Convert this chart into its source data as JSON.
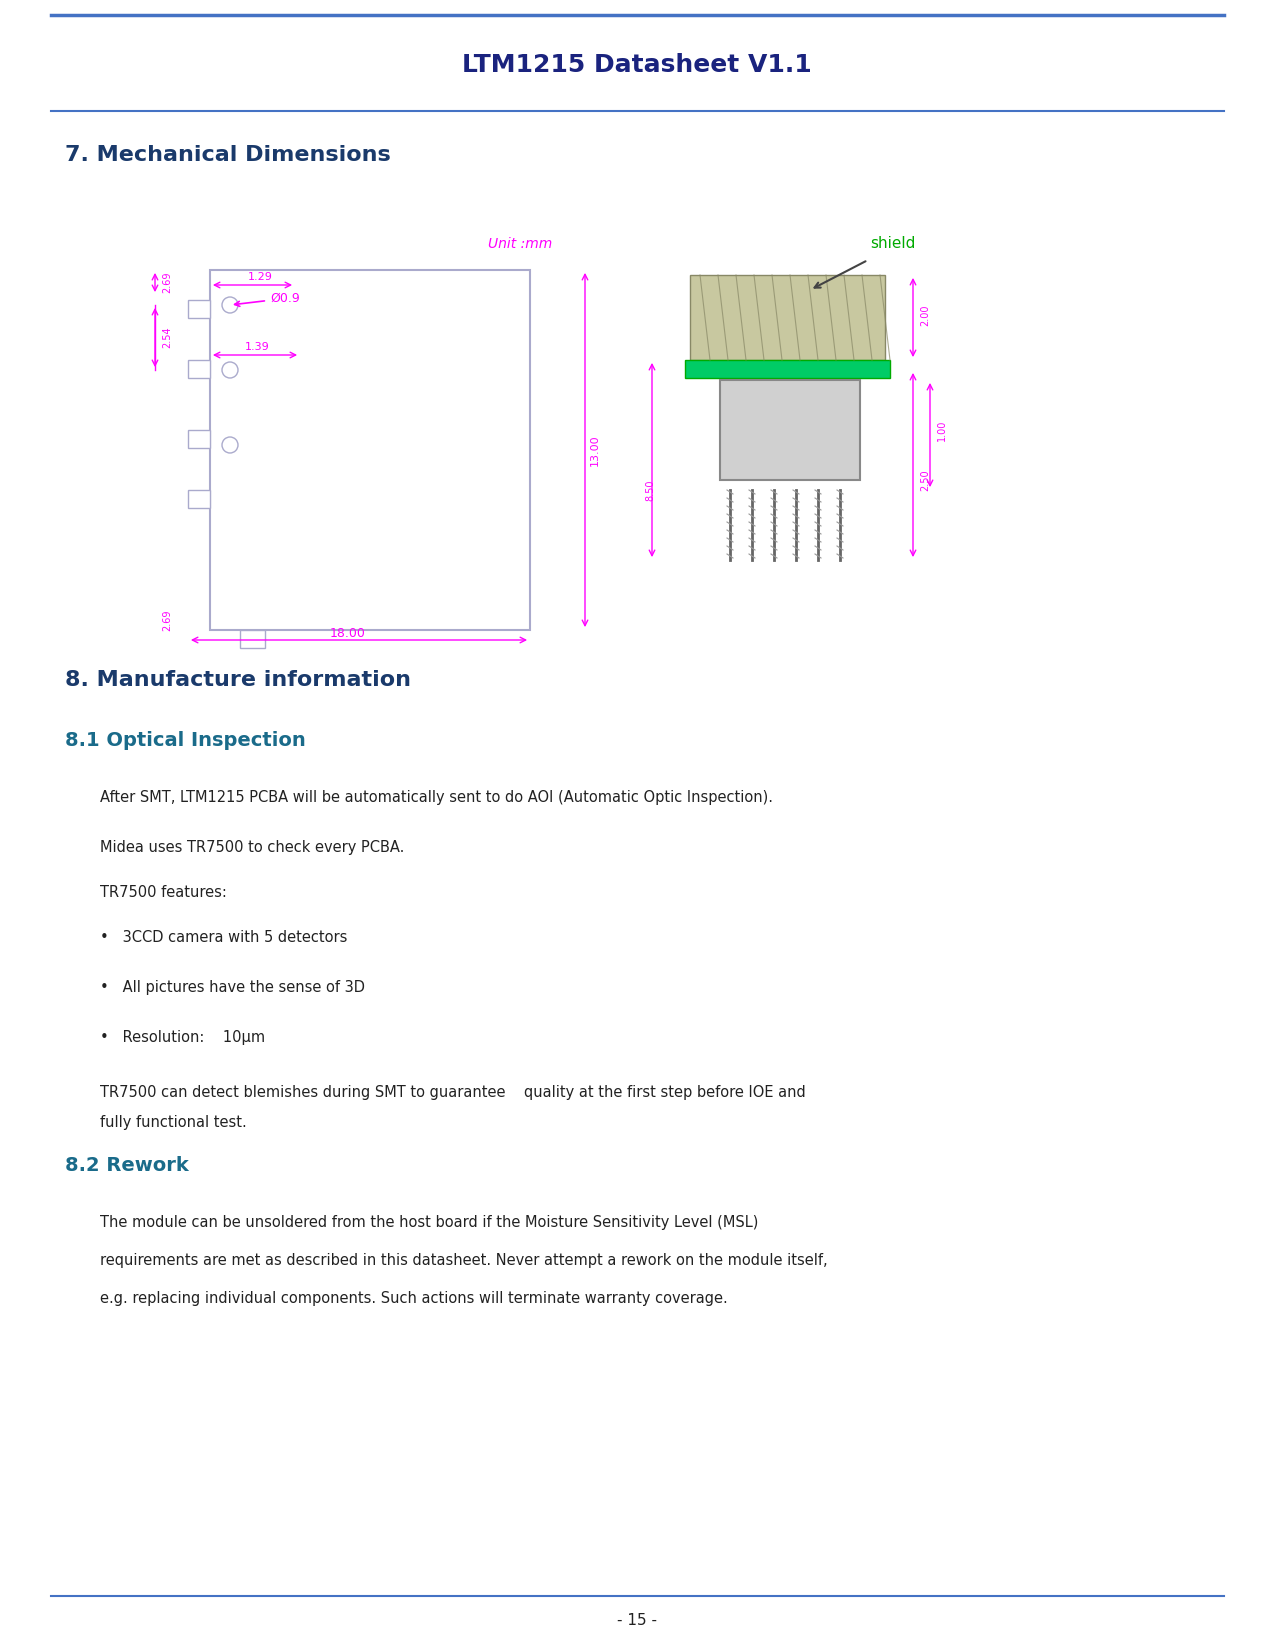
{
  "page_title": "LTM1215 Datasheet V1.1",
  "page_title_color": "#1a237e",
  "header_line_color": "#4472c4",
  "section7_title": "7. Mechanical Dimensions",
  "section8_title": "8. Manufacture information",
  "section81_title": "8.1 Optical Inspection",
  "section82_title": "8.2 Rework",
  "section_title_color": "#1a3a6b",
  "subsection_title_color": "#1a6b8a",
  "body_text_color": "#222222",
  "magenta_color": "#ff00ff",
  "dim_line_color": "#cc88cc",
  "body_text": [
    "After SMT, LTM1215 PCBA will be automatically sent to do AOI (Automatic Optic Inspection).",
    "",
    "Midea uses TR7500 to check every PCBA.",
    "",
    "TR7500 features:",
    "",
    "•   3CCD camera with 5 detectors",
    "",
    "•   All pictures have the sense of 3D",
    "",
    "•   Resolution:    10μm",
    "",
    "TR7500 can detect blemishes during SMT to guarantee    quality at the first step before IOE and\nfully functional test."
  ],
  "rework_text": "The module can be unsoldered from the host board if the Moisture Sensitivity Level (MSL)\nrequirements are met as described in this datasheet. Never attempt a rework on the module itself,\ne.g. replacing individual components. Such actions will terminate warranty coverage.",
  "footer_text": "- 15 -",
  "bg_color": "#ffffff"
}
